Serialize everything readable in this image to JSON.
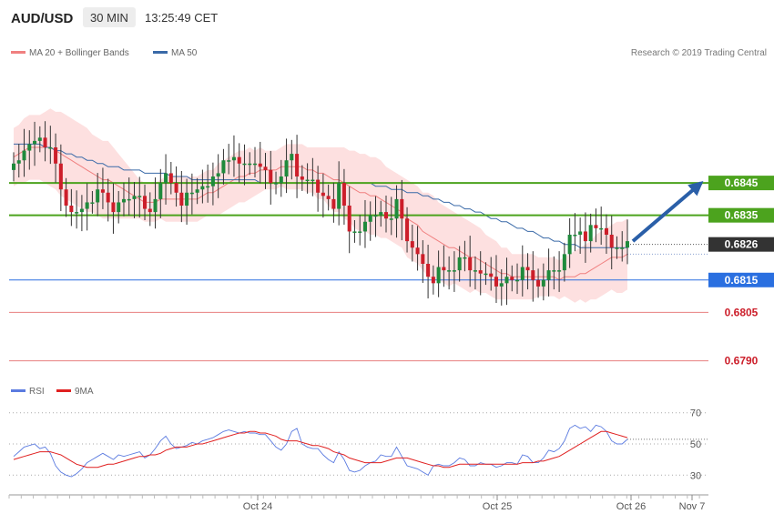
{
  "header": {
    "symbol": "AUD/USD",
    "timeframe": "30 MIN",
    "clock": "13:25:49 CET"
  },
  "legend_main": {
    "ma20_label": "MA 20 + Bollinger Bands",
    "ma50_label": "MA 50",
    "ma20_color": "#f08080",
    "ma50_color": "#3a6aa8",
    "band_fill": "#fde0e0"
  },
  "credit": "Research © 2019 Trading Central",
  "legend_rsi": {
    "rsi_label": "RSI",
    "ma9_label": "9MA",
    "rsi_color": "#5b7be0",
    "ma9_color": "#e02020"
  },
  "colors": {
    "bull_candle": "#1f8a3c",
    "bear_candle": "#cc1e2a",
    "support_green": "#4ca31e",
    "support_blue": "#2a6fe0",
    "red_level": "#e88080",
    "current_price": "#333333",
    "arrow": "#2a5fa8"
  },
  "chart_data": [
    {
      "type": "candlestick",
      "title": "AUD/USD 30 MIN",
      "y_ticks": [
        "0.6845",
        "0.6835",
        "0.6826",
        "0.6815",
        "0.6805",
        "0.6790"
      ],
      "ylim": [
        0.6784,
        0.6883
      ],
      "x_ticks": [
        "Oct 24",
        "Oct 25",
        "Oct 26",
        "Nov 7"
      ],
      "levels": [
        {
          "label": "0.6845",
          "value": 0.6845,
          "kind": "resistance"
        },
        {
          "label": "0.6835",
          "value": 0.6835,
          "kind": "pivot"
        },
        {
          "label": "0.6826",
          "value": 0.6826,
          "kind": "current"
        },
        {
          "label": "0.6815",
          "value": 0.6815,
          "kind": "support"
        },
        {
          "label": "0.6805",
          "value": 0.6805,
          "kind": "support"
        },
        {
          "label": "0.6790",
          "value": 0.679,
          "kind": "support"
        }
      ],
      "forecast_arrow": {
        "from": 0.6827,
        "to": 0.6845
      },
      "closes": [
        0.6851,
        0.6852,
        0.6855,
        0.6857,
        0.6858,
        0.6859,
        0.6856,
        0.6856,
        0.6851,
        0.6843,
        0.6838,
        0.6836,
        0.6836,
        0.6837,
        0.6839,
        0.6839,
        0.6843,
        0.6842,
        0.6839,
        0.6836,
        0.6839,
        0.684,
        0.684,
        0.6841,
        0.6841,
        0.6837,
        0.6836,
        0.684,
        0.6845,
        0.6848,
        0.6845,
        0.6842,
        0.6838,
        0.6842,
        0.6842,
        0.6843,
        0.6844,
        0.6844,
        0.6847,
        0.6848,
        0.6852,
        0.6852,
        0.6853,
        0.6851,
        0.6851,
        0.6851,
        0.6851,
        0.685,
        0.6849,
        0.6845,
        0.6845,
        0.6847,
        0.6852,
        0.6854,
        0.6847,
        0.6846,
        0.6846,
        0.6846,
        0.6842,
        0.6841,
        0.684,
        0.6837,
        0.6845,
        0.6838,
        0.683,
        0.683,
        0.683,
        0.6833,
        0.6835,
        0.6835,
        0.6836,
        0.6834,
        0.6834,
        0.684,
        0.6834,
        0.6827,
        0.6825,
        0.6823,
        0.682,
        0.6816,
        0.6814,
        0.6819,
        0.6818,
        0.6818,
        0.6818,
        0.6822,
        0.6822,
        0.6818,
        0.6818,
        0.6817,
        0.6817,
        0.6816,
        0.6813,
        0.6814,
        0.6816,
        0.6815,
        0.6815,
        0.6819,
        0.6818,
        0.6815,
        0.6813,
        0.6815,
        0.6818,
        0.6818,
        0.6818,
        0.6823,
        0.6829,
        0.6829,
        0.683,
        0.6827,
        0.6832,
        0.6831,
        0.6831,
        0.6829,
        0.6825,
        0.6825,
        0.6825,
        0.6827
      ],
      "ma20_values": [
        0.6853,
        0.6854,
        0.6855,
        0.6856,
        0.6856,
        0.6856,
        0.6856,
        0.6856,
        0.6855,
        0.6854,
        0.6853,
        0.6852,
        0.6851,
        0.685,
        0.6849,
        0.6848,
        0.6847,
        0.6846,
        0.6846,
        0.6845,
        0.6844,
        0.6843,
        0.6842,
        0.6841,
        0.684,
        0.6839,
        0.6839,
        0.6839,
        0.684,
        0.684,
        0.684,
        0.684,
        0.684,
        0.684,
        0.684,
        0.684,
        0.6841,
        0.6842,
        0.6842,
        0.6843,
        0.6844,
        0.6845,
        0.6846,
        0.6847,
        0.6847,
        0.6848,
        0.6848,
        0.6849,
        0.6849,
        0.6849,
        0.6849,
        0.685,
        0.685,
        0.685,
        0.685,
        0.685,
        0.6849,
        0.6849,
        0.6848,
        0.6848,
        0.6847,
        0.6846,
        0.6846,
        0.6845,
        0.6844,
        0.6843,
        0.6842,
        0.6842,
        0.6841,
        0.6841,
        0.684,
        0.6839,
        0.6838,
        0.6837,
        0.6836,
        0.6834,
        0.6833,
        0.6832,
        0.683,
        0.6829,
        0.6828,
        0.6827,
        0.6826,
        0.6825,
        0.6825,
        0.6824,
        0.6823,
        0.6822,
        0.6822,
        0.6821,
        0.682,
        0.6819,
        0.6818,
        0.6817,
        0.6817,
        0.6816,
        0.6816,
        0.6816,
        0.6816,
        0.6816,
        0.6816,
        0.6816,
        0.6816,
        0.6816,
        0.6815,
        0.6816,
        0.6816,
        0.6816,
        0.6817,
        0.6817,
        0.6818,
        0.6819,
        0.682,
        0.6821,
        0.6822,
        0.6822,
        0.6822,
        0.6823
      ],
      "band_width": [
        0.0009,
        0.0009,
        0.001,
        0.001,
        0.001,
        0.001,
        0.0011,
        0.0012,
        0.0012,
        0.0013,
        0.0013,
        0.0013,
        0.0013,
        0.0013,
        0.0013,
        0.0012,
        0.0012,
        0.0012,
        0.0012,
        0.0011,
        0.001,
        0.0009,
        0.0008,
        0.0007,
        0.0006,
        0.0006,
        0.0006,
        0.0006,
        0.0006,
        0.0007,
        0.0007,
        0.0007,
        0.0007,
        0.0007,
        0.0007,
        0.0007,
        0.0007,
        0.0007,
        0.0007,
        0.0008,
        0.0008,
        0.0008,
        0.0008,
        0.0008,
        0.0008,
        0.0008,
        0.0007,
        0.0007,
        0.0006,
        0.0006,
        0.0006,
        0.0006,
        0.0007,
        0.0007,
        0.0007,
        0.0007,
        0.0007,
        0.0007,
        0.0008,
        0.0008,
        0.0009,
        0.001,
        0.001,
        0.0011,
        0.0011,
        0.0012,
        0.0012,
        0.0012,
        0.0012,
        0.0012,
        0.0012,
        0.0011,
        0.0011,
        0.0011,
        0.0011,
        0.0012,
        0.0012,
        0.0012,
        0.0012,
        0.0013,
        0.0013,
        0.0012,
        0.0012,
        0.0012,
        0.0011,
        0.0011,
        0.0011,
        0.0011,
        0.001,
        0.001,
        0.0009,
        0.0009,
        0.0009,
        0.0008,
        0.0008,
        0.0007,
        0.0007,
        0.0007,
        0.0007,
        0.0007,
        0.0006,
        0.0006,
        0.0006,
        0.0006,
        0.0006,
        0.0006,
        0.0007,
        0.0008,
        0.0008,
        0.0009,
        0.0009,
        0.001,
        0.001,
        0.001,
        0.001,
        0.0011,
        0.0011,
        0.0011
      ],
      "ma50_values": [
        0.6857,
        0.6857,
        0.6857,
        0.6857,
        0.6857,
        0.6857,
        0.6856,
        0.6856,
        0.6855,
        0.6855,
        0.6854,
        0.6854,
        0.6853,
        0.6853,
        0.6852,
        0.6852,
        0.6851,
        0.6851,
        0.685,
        0.685,
        0.685,
        0.6849,
        0.6849,
        0.6849,
        0.6849,
        0.6848,
        0.6848,
        0.6848,
        0.6848,
        0.6848,
        0.6847,
        0.6847,
        0.6847,
        0.6847,
        0.6846,
        0.6846,
        0.6846,
        0.6846,
        0.6846,
        0.6846,
        0.6846,
        0.6846,
        0.6846,
        0.6846,
        0.6846,
        0.6846,
        0.6846,
        0.6845,
        0.6845,
        0.6845,
        0.6845,
        0.6845,
        0.6845,
        0.6845,
        0.6845,
        0.6845,
        0.6845,
        0.6845,
        0.6845,
        0.6845,
        0.6845,
        0.6845,
        0.6845,
        0.6845,
        0.6845,
        0.6845,
        0.6845,
        0.6845,
        0.6845,
        0.6844,
        0.6844,
        0.6844,
        0.6843,
        0.6843,
        0.6843,
        0.6842,
        0.6842,
        0.6842,
        0.6841,
        0.6841,
        0.684,
        0.684,
        0.6839,
        0.6839,
        0.6838,
        0.6838,
        0.6837,
        0.6837,
        0.6836,
        0.6836,
        0.6835,
        0.6834,
        0.6834,
        0.6833,
        0.6833,
        0.6832,
        0.6831,
        0.6831,
        0.683,
        0.683,
        0.6829,
        0.6828,
        0.6828,
        0.6827,
        0.6827,
        0.6826,
        0.6826,
        0.6826,
        0.6825,
        0.6825,
        0.6825,
        0.6825,
        0.6825,
        0.6825,
        0.6825,
        0.6825,
        0.6825,
        0.6825
      ]
    },
    {
      "type": "line",
      "title": "RSI",
      "y_ticks": [
        "70",
        "50",
        "30"
      ],
      "ylim": [
        22,
        78
      ],
      "reference_lines": [
        70,
        50,
        30
      ],
      "current": 53,
      "series": [
        {
          "name": "RSI",
          "values": [
            42,
            45,
            48,
            49,
            50,
            47,
            48,
            44,
            36,
            32,
            30,
            29,
            31,
            34,
            38,
            40,
            42,
            44,
            42,
            40,
            43,
            42,
            43,
            44,
            45,
            41,
            43,
            47,
            52,
            55,
            50,
            47,
            48,
            49,
            51,
            50,
            52,
            53,
            54,
            56,
            58,
            59,
            58,
            57,
            58,
            57,
            57,
            56,
            56,
            52,
            48,
            46,
            50,
            58,
            60,
            50,
            48,
            47,
            47,
            43,
            40,
            38,
            45,
            40,
            33,
            32,
            33,
            36,
            38,
            39,
            43,
            42,
            42,
            48,
            42,
            36,
            35,
            34,
            32,
            30,
            36,
            37,
            36,
            36,
            38,
            41,
            40,
            36,
            36,
            38,
            37,
            37,
            35,
            36,
            38,
            38,
            37,
            43,
            42,
            38,
            38,
            41,
            46,
            45,
            47,
            52,
            60,
            62,
            60,
            61,
            58,
            62,
            61,
            58,
            52,
            50,
            50,
            53
          ]
        },
        {
          "name": "9MA",
          "values": [
            40,
            41,
            42,
            43,
            44,
            45,
            45,
            45,
            44,
            43,
            41,
            39,
            37,
            36,
            35,
            35,
            35,
            36,
            37,
            37,
            38,
            39,
            40,
            41,
            42,
            42,
            43,
            43,
            44,
            46,
            47,
            48,
            48,
            48,
            49,
            50,
            50,
            51,
            52,
            53,
            54,
            55,
            56,
            57,
            57,
            58,
            58,
            57,
            57,
            56,
            55,
            53,
            52,
            52,
            52,
            51,
            50,
            49,
            49,
            48,
            47,
            45,
            44,
            43,
            41,
            40,
            39,
            38,
            38,
            38,
            38,
            39,
            40,
            41,
            41,
            41,
            40,
            39,
            38,
            37,
            36,
            36,
            35,
            35,
            36,
            37,
            37,
            37,
            37,
            37,
            37,
            37,
            37,
            37,
            37,
            37,
            37,
            38,
            38,
            38,
            39,
            39,
            40,
            41,
            42,
            44,
            46,
            48,
            50,
            52,
            54,
            56,
            58,
            58,
            57,
            56,
            55,
            54
          ]
        }
      ]
    }
  ]
}
